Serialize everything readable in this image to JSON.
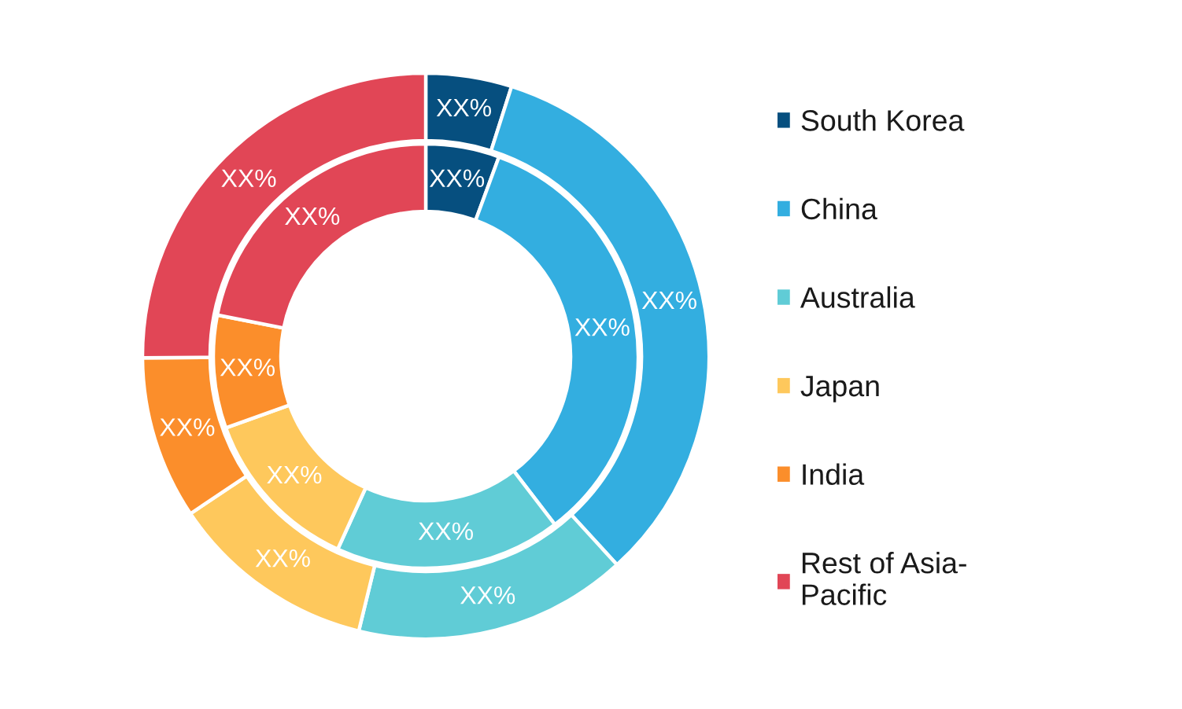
{
  "chart_data": {
    "type": "donut",
    "categories": [
      "South Korea",
      "China",
      "Australia",
      "Japan",
      "India",
      "Rest of Asia-Pacific"
    ],
    "colors": [
      "#064f7f",
      "#33aee0",
      "#60ccd6",
      "#fec85c",
      "#fb8e2b",
      "#e14656"
    ],
    "series": [
      {
        "values": [
          4.9,
          33.3,
          15.6,
          11.8,
          9.3,
          25.1
        ],
        "value_labels": [
          "XX%",
          "XX%",
          "XX%",
          "XX%",
          "XX%",
          "XX%"
        ]
      },
      {
        "values": [
          5.6,
          34.0,
          17.2,
          12.7,
          8.6,
          21.9
        ],
        "value_labels": [
          "XX%",
          "XX%",
          "XX%",
          "XX%",
          "XX%",
          "XX%"
        ]
      }
    ],
    "legend": "right"
  }
}
